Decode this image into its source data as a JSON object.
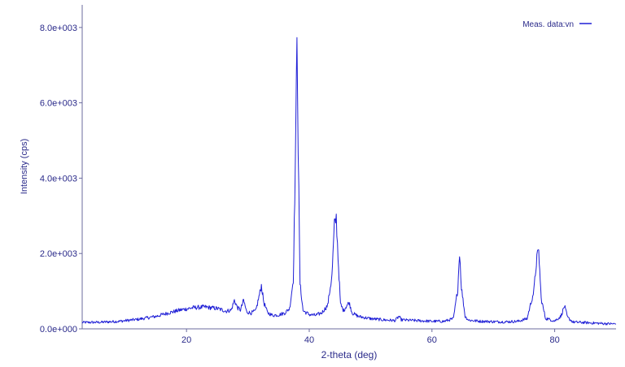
{
  "chart_data": {
    "type": "line",
    "title": "",
    "xlabel": "2-theta (deg)",
    "ylabel": "Intensity (cps)",
    "xlim": [
      3,
      90
    ],
    "ylim": [
      0,
      8600
    ],
    "xticks": [
      {
        "value": 20,
        "label": "20"
      },
      {
        "value": 40,
        "label": "40"
      },
      {
        "value": 60,
        "label": "60"
      },
      {
        "value": 80,
        "label": "80"
      }
    ],
    "yticks": [
      {
        "value": 0,
        "label": "0.0e+000"
      },
      {
        "value": 2000,
        "label": "2.0e+003"
      },
      {
        "value": 4000,
        "label": "4.0e+003"
      },
      {
        "value": 6000,
        "label": "6.0e+003"
      },
      {
        "value": 8000,
        "label": "8.0e+003"
      }
    ],
    "grid": false,
    "legend": {
      "position": "top-right",
      "entries": [
        "Meas. data:vn"
      ]
    },
    "line_color": "#1f1fd6",
    "axis_color": "#6b6b9e",
    "text_color": "#2a2a8a",
    "series": [
      {
        "name": "Meas. data:vn",
        "x": [
          3,
          6,
          9,
          12,
          15,
          17,
          19,
          21,
          23,
          25,
          26.5,
          27.3,
          27.8,
          28.3,
          28.8,
          29.3,
          29.8,
          30.5,
          31.3,
          31.8,
          32.2,
          32.6,
          33.2,
          34,
          35,
          36,
          36.8,
          37.4,
          37.8,
          38.0,
          38.2,
          38.5,
          39,
          40,
          41,
          42,
          43,
          43.7,
          44.1,
          44.4,
          44.7,
          45.1,
          45.6,
          46.1,
          46.5,
          47,
          48,
          50,
          52,
          54,
          54.6,
          55,
          56,
          58,
          60,
          62,
          63.5,
          64.2,
          64.5,
          64.8,
          65.4,
          66,
          67.5,
          70,
          72,
          74,
          75.5,
          76.6,
          77.1,
          77.4,
          77.8,
          78.5,
          80,
          81,
          81.6,
          82.1,
          83,
          85,
          88,
          90
        ],
        "y": [
          170,
          175,
          200,
          250,
          330,
          420,
          500,
          560,
          580,
          540,
          470,
          500,
          760,
          560,
          500,
          760,
          450,
          420,
          480,
          850,
          1150,
          700,
          430,
          360,
          370,
          420,
          540,
          1300,
          5000,
          8050,
          4800,
          1200,
          480,
          380,
          360,
          420,
          620,
          1400,
          2750,
          2950,
          1900,
          650,
          480,
          620,
          700,
          420,
          330,
          270,
          240,
          220,
          330,
          240,
          230,
          215,
          200,
          200,
          270,
          1050,
          2050,
          1100,
          330,
          230,
          205,
          190,
          185,
          200,
          270,
          1000,
          1900,
          2050,
          800,
          280,
          210,
          330,
          610,
          300,
          180,
          165,
          140,
          130
        ]
      }
    ]
  }
}
